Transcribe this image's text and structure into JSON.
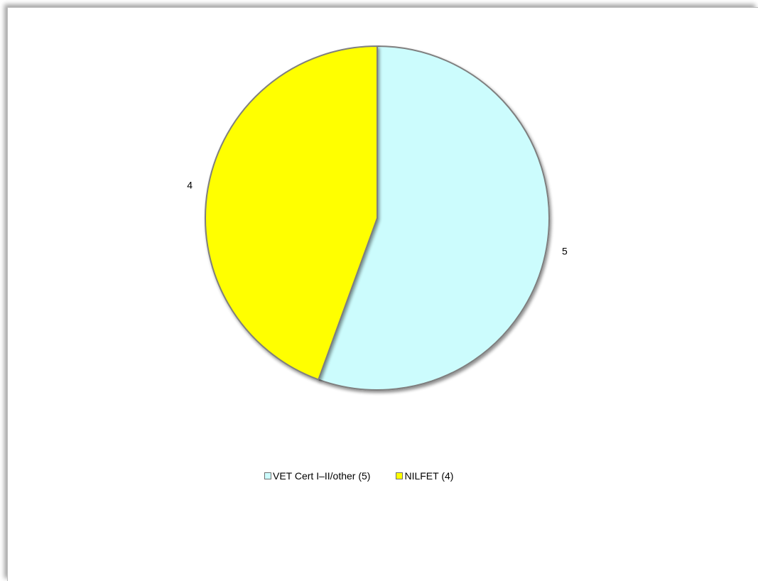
{
  "chart_data": {
    "type": "pie",
    "title": "",
    "series": [
      {
        "values": [
          5,
          4
        ],
        "labels": [
          "5",
          "4"
        ]
      }
    ],
    "categories": [
      "VET Cert I–II/other (5)",
      "NILFET (4)"
    ],
    "colors": [
      "#ccfcfd",
      "#ffff00"
    ],
    "border_color": "#7f7f7f",
    "legend": {
      "placement": "bottom",
      "items": [
        "VET Cert I–II/other (5)",
        "NILFET (4)"
      ]
    },
    "start_angle_deg": 0,
    "direction": "clockwise"
  }
}
